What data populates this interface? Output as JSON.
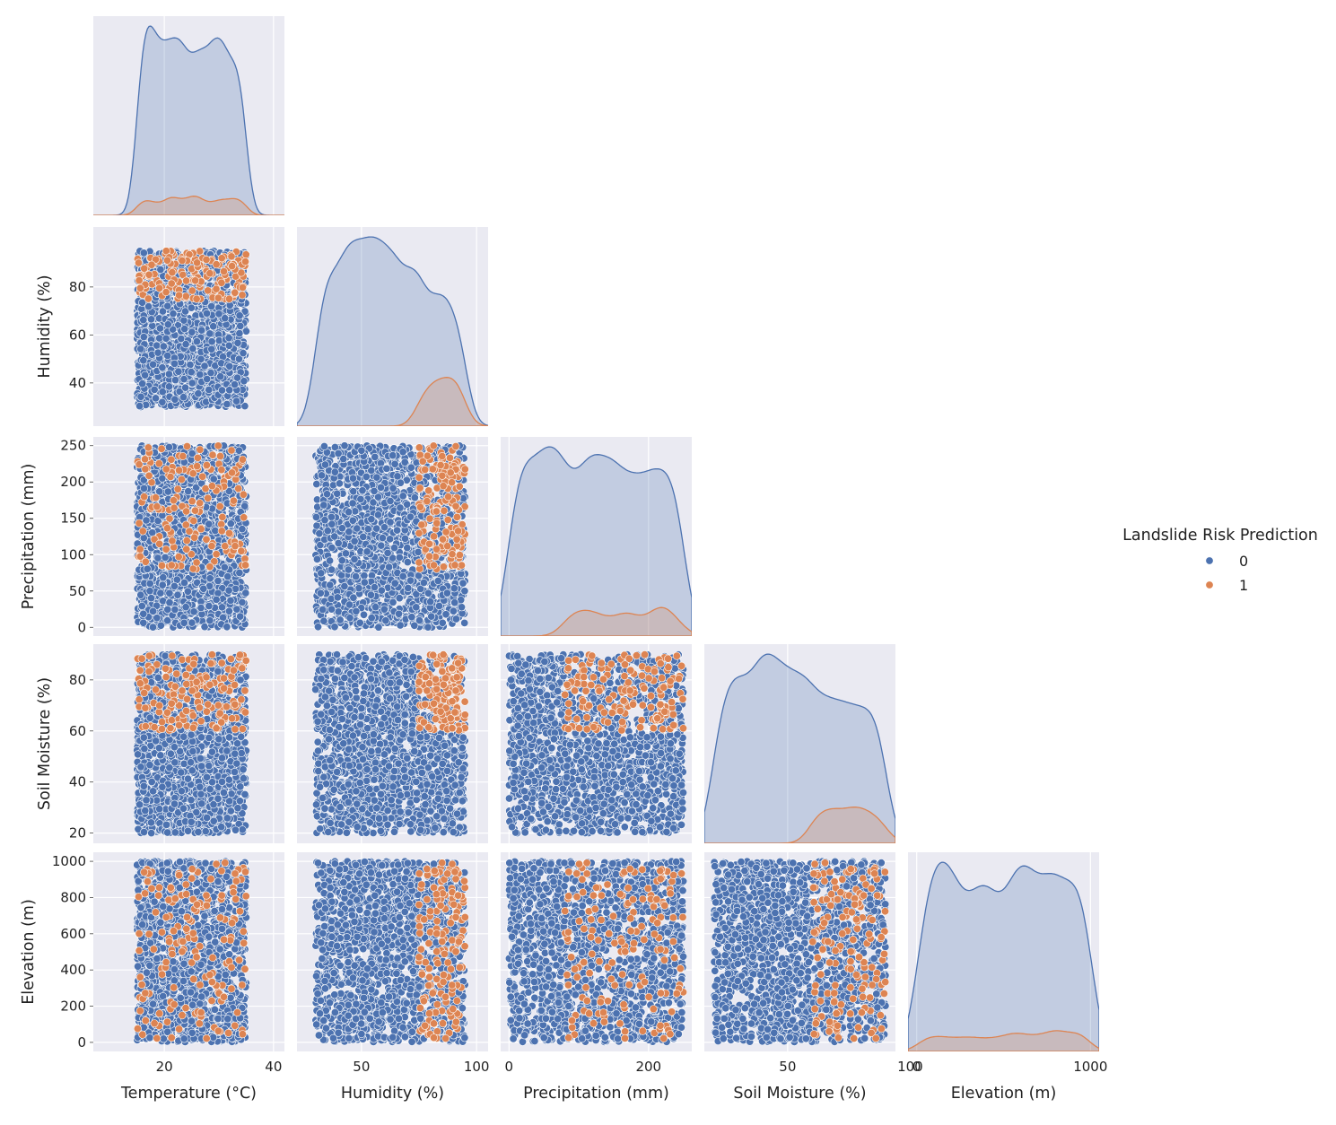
{
  "chart_data": {
    "type": "pairplot",
    "variables": [
      {
        "key": "temp",
        "label": "Temperature (°C)",
        "range": [
          7,
          42
        ],
        "ticks": [
          20,
          40
        ],
        "data_range": [
          15,
          35
        ]
      },
      {
        "key": "hum",
        "label": "Humidity (%)",
        "range": [
          22,
          105
        ],
        "ticks": [
          40,
          60,
          80
        ],
        "xticks": [
          50,
          100
        ],
        "data_range": [
          30,
          95
        ]
      },
      {
        "key": "precip",
        "label": "Precipitation (mm)",
        "range": [
          -12,
          262
        ],
        "ticks": [
          0,
          50,
          100,
          150,
          200,
          250
        ],
        "xticks": [
          0,
          200
        ],
        "data_range": [
          0,
          250
        ]
      },
      {
        "key": "soil",
        "label": "Soil Moisture (%)",
        "range": [
          16,
          94
        ],
        "ticks": [
          20,
          40,
          60,
          80
        ],
        "xticks": [
          50,
          100
        ],
        "data_range": [
          20,
          90
        ]
      },
      {
        "key": "elev",
        "label": "Elevation (m)",
        "range": [
          -50,
          1050
        ],
        "ticks": [
          0,
          200,
          400,
          600,
          800,
          1000
        ],
        "xticks": [
          0,
          1000
        ],
        "data_range": [
          0,
          1000
        ]
      }
    ],
    "hue": {
      "title": "Landslide Risk Prediction",
      "levels": [
        {
          "label": "0",
          "color": "#4c72b0"
        },
        {
          "label": "1",
          "color": "#dd8452"
        }
      ],
      "class1_rule": "humidity > 75 and soil moisture > 60 and precipitation > 80"
    },
    "corner": true,
    "grid": true,
    "legend_position": "right",
    "diagonal": "kde",
    "offdiagonal": "scatter"
  }
}
